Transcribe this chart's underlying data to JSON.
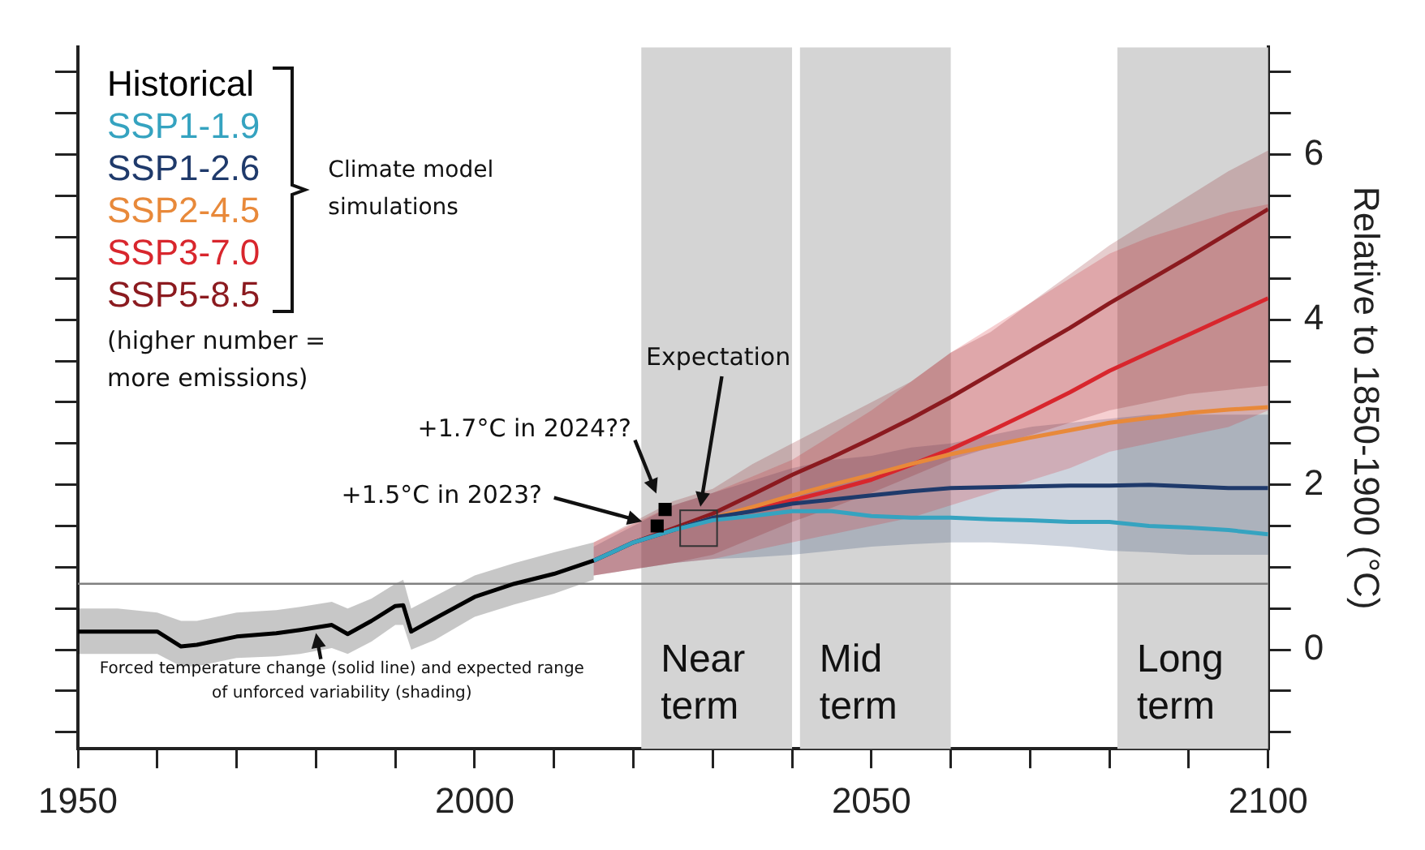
{
  "chart_data": {
    "type": "line",
    "xlabel": null,
    "ylabel": "Relative to 1850-1900 (°C)",
    "xlim": [
      1950,
      2100
    ],
    "ylim": [
      -1.2,
      7.3
    ],
    "xticks": [
      1950,
      {
        "value": 1960,
        "label": null
      },
      {
        "value": 1970,
        "label": null
      },
      {
        "value": 1980,
        "label": null
      },
      {
        "value": 1990,
        "label": null
      },
      2000,
      {
        "value": 2010,
        "label": null
      },
      {
        "value": 2020,
        "label": null
      },
      {
        "value": 2030,
        "label": null
      },
      {
        "value": 2040,
        "label": null
      },
      2050,
      {
        "value": 2060,
        "label": null
      },
      {
        "value": 2070,
        "label": null
      },
      {
        "value": 2080,
        "label": null
      },
      {
        "value": 2090,
        "label": null
      },
      2100
    ],
    "yticks": [
      {
        "value": -1,
        "label": null
      },
      {
        "value": -0.5,
        "label": null
      },
      0,
      {
        "value": 0.5,
        "label": null
      },
      {
        "value": 1,
        "label": null
      },
      {
        "value": 1.5,
        "label": null
      },
      2,
      {
        "value": 2.5,
        "label": null
      },
      {
        "value": 3,
        "label": null
      },
      {
        "value": 3.5,
        "label": null
      },
      4,
      {
        "value": 4.5,
        "label": null
      },
      {
        "value": 5,
        "label": null
      },
      {
        "value": 5.5,
        "label": null
      },
      6,
      {
        "value": 6.5,
        "label": null
      },
      {
        "value": 7,
        "label": null
      }
    ],
    "grid": false,
    "legend": "top left",
    "marker": "none",
    "series": [
      {
        "name": "Historical",
        "color": "#000000",
        "x": [
          1950,
          1955,
          1960,
          1963,
          1965,
          1970,
          1975,
          1978,
          1982,
          1984,
          1987,
          1990,
          1991,
          1992,
          1995,
          2000,
          2005,
          2010,
          2015
        ],
        "values": [
          0.22,
          0.22,
          0.22,
          0.04,
          0.06,
          0.16,
          0.2,
          0.24,
          0.3,
          0.19,
          0.35,
          0.53,
          0.54,
          0.22,
          0.38,
          0.64,
          0.8,
          0.92,
          1.08
        ],
        "lower": [
          -0.05,
          -0.05,
          -0.05,
          -0.2,
          -0.2,
          -0.1,
          -0.08,
          -0.05,
          0.02,
          -0.05,
          0.1,
          0.3,
          0.3,
          0.0,
          0.12,
          0.4,
          0.55,
          0.68,
          0.85
        ],
        "upper": [
          0.5,
          0.5,
          0.45,
          0.35,
          0.35,
          0.45,
          0.48,
          0.52,
          0.58,
          0.5,
          0.62,
          0.8,
          0.85,
          0.5,
          0.65,
          0.9,
          1.05,
          1.18,
          1.3
        ]
      },
      {
        "name": "SSP1-1.9",
        "color": "#35a3c0",
        "x": [
          2015,
          2020,
          2025,
          2030,
          2035,
          2040,
          2045,
          2050,
          2055,
          2060,
          2065,
          2070,
          2075,
          2080,
          2085,
          2090,
          2095,
          2100
        ],
        "values": [
          1.08,
          1.3,
          1.45,
          1.57,
          1.62,
          1.68,
          1.68,
          1.62,
          1.6,
          1.6,
          1.58,
          1.57,
          1.55,
          1.55,
          1.5,
          1.48,
          1.45,
          1.4
        ]
      },
      {
        "name": "SSP1-2.6",
        "color": "#1f3a6b",
        "x": [
          2015,
          2020,
          2025,
          2030,
          2035,
          2040,
          2045,
          2050,
          2055,
          2060,
          2065,
          2070,
          2075,
          2080,
          2085,
          2090,
          2095,
          2100
        ],
        "values": [
          1.08,
          1.3,
          1.45,
          1.6,
          1.68,
          1.77,
          1.82,
          1.87,
          1.92,
          1.96,
          1.97,
          1.98,
          1.99,
          1.99,
          2.0,
          1.98,
          1.96,
          1.96
        ],
        "lower": [
          0.9,
          null,
          1.05,
          1.1,
          1.12,
          1.15,
          1.2,
          1.25,
          1.28,
          1.3,
          1.3,
          1.28,
          1.25,
          1.2,
          1.18,
          1.15,
          1.15,
          1.15
        ],
        "upper": [
          1.25,
          null,
          1.75,
          1.9,
          2.05,
          2.2,
          2.3,
          2.35,
          2.45,
          2.5,
          2.6,
          2.7,
          2.75,
          2.8,
          2.85,
          2.85,
          2.85,
          2.85
        ]
      },
      {
        "name": "SSP2-4.5",
        "color": "#e8893a",
        "x": [
          2025,
          2030,
          2035,
          2040,
          2045,
          2050,
          2055,
          2060,
          2065,
          2070,
          2075,
          2080,
          2085,
          2090,
          2095,
          2100
        ],
        "values": [
          1.45,
          1.6,
          1.73,
          1.87,
          2.0,
          2.12,
          2.25,
          2.37,
          2.47,
          2.57,
          2.66,
          2.75,
          2.81,
          2.87,
          2.91,
          2.94
        ]
      },
      {
        "name": "SSP3-7.0",
        "color": "#d8262d",
        "x": [
          2015,
          2020,
          2025,
          2030,
          2035,
          2040,
          2045,
          2050,
          2055,
          2060,
          2065,
          2070,
          2075,
          2080,
          2085,
          2090,
          2095,
          2100
        ],
        "values": [
          null,
          null,
          null,
          1.6,
          1.7,
          1.81,
          1.93,
          2.06,
          2.24,
          2.43,
          2.65,
          2.88,
          3.12,
          3.38,
          3.6,
          3.82,
          4.04,
          4.26
        ],
        "lower": [
          0.9,
          null,
          1.05,
          1.1,
          1.2,
          1.3,
          1.4,
          1.5,
          1.6,
          1.75,
          1.9,
          2.05,
          2.2,
          2.4,
          2.5,
          2.6,
          2.7,
          2.9
        ],
        "upper": [
          1.3,
          null,
          1.75,
          1.9,
          2.1,
          2.3,
          2.6,
          2.9,
          3.25,
          3.6,
          3.9,
          4.2,
          4.5,
          4.8,
          5.0,
          5.15,
          5.3,
          5.4
        ]
      },
      {
        "name": "SSP5-8.5",
        "color": "#8b1a1f",
        "x": [
          2015,
          2020,
          2025,
          2030,
          2035,
          2040,
          2045,
          2050,
          2055,
          2060,
          2065,
          2070,
          2075,
          2080,
          2085,
          2090,
          2095,
          2100
        ],
        "values": [
          1.08,
          1.3,
          1.47,
          1.65,
          1.88,
          2.12,
          2.33,
          2.56,
          2.8,
          3.06,
          3.34,
          3.62,
          3.9,
          4.2,
          4.48,
          4.76,
          5.05,
          5.34
        ],
        "lower": [
          0.9,
          null,
          1.05,
          1.15,
          1.35,
          1.55,
          1.72,
          1.9,
          2.1,
          2.3,
          2.45,
          2.6,
          2.75,
          2.9,
          3.0,
          3.1,
          3.15,
          3.2
        ],
        "upper": [
          1.3,
          null,
          1.8,
          1.95,
          2.25,
          2.5,
          2.75,
          3.0,
          3.25,
          3.6,
          3.85,
          4.2,
          4.55,
          4.9,
          5.2,
          5.5,
          5.8,
          6.05
        ]
      },
      {
        "type": "scatter",
        "marker": "square",
        "color": "#000000",
        "x": [
          2023,
          2024
        ],
        "values": [
          1.5,
          1.7
        ]
      }
    ],
    "bands": [
      {
        "axis": "x",
        "from": 2021,
        "to": 2040,
        "label": "Near term",
        "color": "#d4d4d4"
      },
      {
        "axis": "x",
        "from": 2041,
        "to": 2060,
        "label": "Mid term",
        "color": "#d4d4d4"
      },
      {
        "axis": "x",
        "from": 2081,
        "to": 2100,
        "label": "Long term",
        "color": "#d4d4d4"
      }
    ],
    "ref_lines": [
      {
        "axis": "y",
        "value": 0.8,
        "color": "#808080"
      }
    ],
    "annotations": [
      "Climate model simulations",
      "(higher number = more emissions)",
      "+1.7°C in 2024??",
      "+1.5°C in 2023?",
      "Expectation",
      {
        "text": "Forced temperature change (solid line) and expected range of unforced variability (shading)",
        "x": 1980,
        "y": 0.28
      }
    ]
  }
}
